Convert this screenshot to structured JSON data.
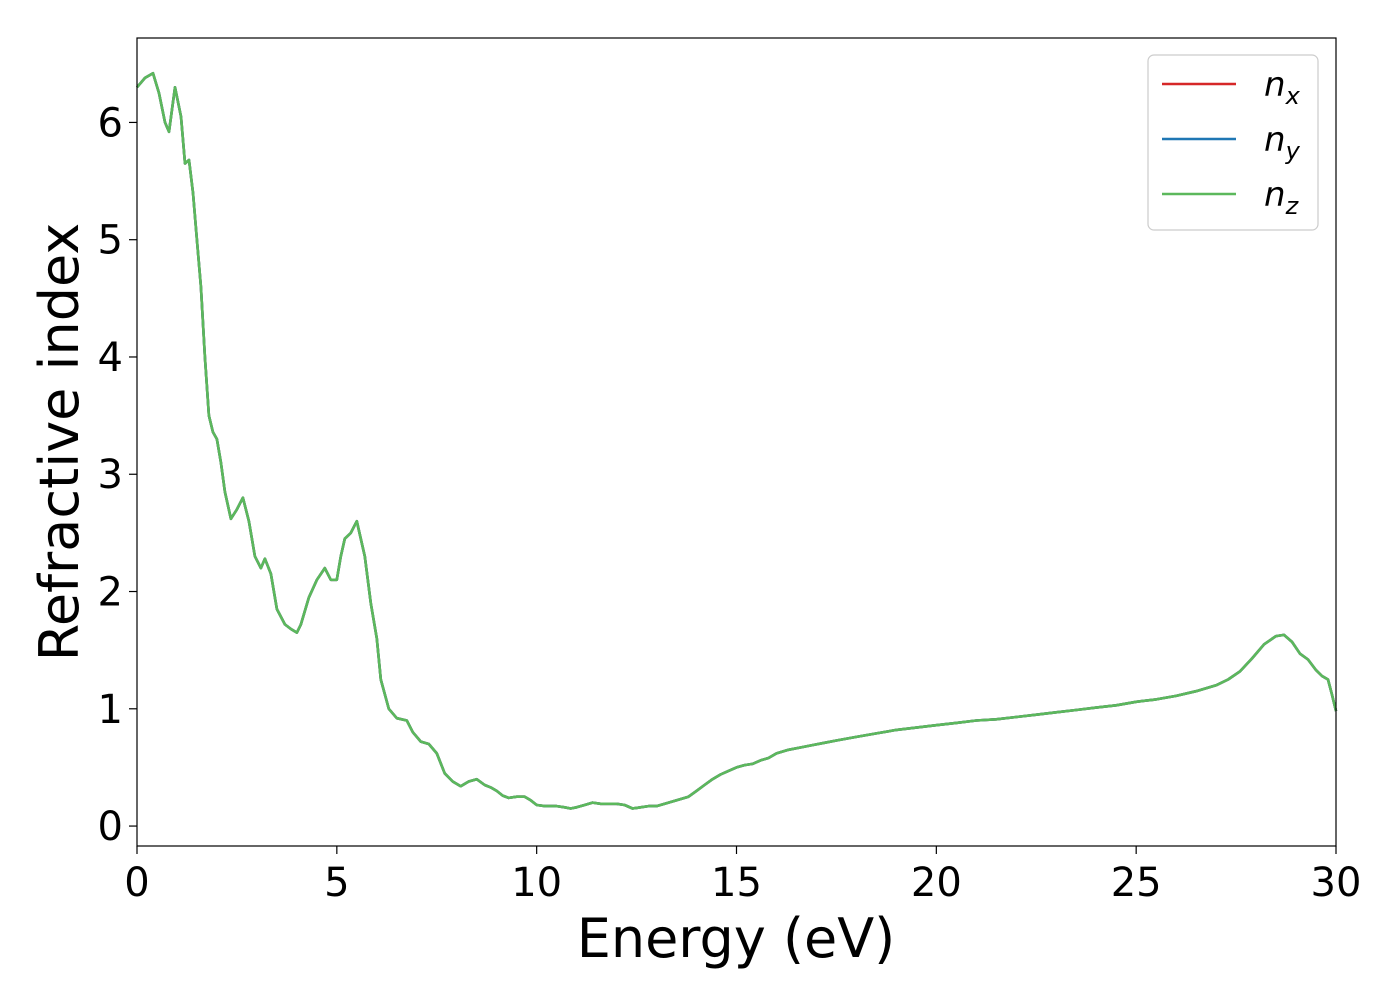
{
  "chart_data": {
    "type": "line",
    "title": "",
    "xlabel": "Energy (eV)",
    "ylabel": "Refractive index",
    "xlim": [
      0,
      30
    ],
    "ylim": [
      -0.17,
      6.72
    ],
    "xticks": [
      0,
      5,
      10,
      15,
      20,
      25,
      30
    ],
    "yticks": [
      0,
      1,
      2,
      3,
      4,
      5,
      6
    ],
    "grid": false,
    "legend_position": "top-right",
    "series": [
      {
        "name": "n",
        "subscript": "x",
        "color": "#d62728",
        "x": [
          0,
          0.2,
          0.4,
          0.55,
          0.7,
          0.8,
          0.95,
          1.1,
          1.2,
          1.3,
          1.4,
          1.5,
          1.6,
          1.7,
          1.8,
          1.9,
          2.0,
          2.1,
          2.2,
          2.35,
          2.5,
          2.65,
          2.8,
          2.95,
          3.1,
          3.2,
          3.35,
          3.5,
          3.7,
          3.85,
          4.0,
          4.1,
          4.3,
          4.5,
          4.7,
          4.85,
          5.0,
          5.1,
          5.2,
          5.35,
          5.5,
          5.7,
          5.85,
          6.0,
          6.1,
          6.3,
          6.5,
          6.75,
          6.9,
          7.1,
          7.3,
          7.5,
          7.7,
          7.9,
          8.1,
          8.3,
          8.5,
          8.7,
          8.85,
          9.0,
          9.15,
          9.3,
          9.5,
          9.7,
          9.85,
          10.0,
          10.2,
          10.5,
          10.7,
          10.85,
          11.0,
          11.2,
          11.4,
          11.6,
          11.8,
          12.0,
          12.2,
          12.4,
          12.6,
          12.8,
          13.0,
          13.3,
          13.6,
          13.8,
          14.0,
          14.2,
          14.4,
          14.6,
          14.8,
          15.0,
          15.2,
          15.4,
          15.6,
          15.8,
          16.0,
          16.3,
          16.6,
          16.9,
          17.2,
          17.5,
          18.0,
          18.5,
          19.0,
          19.5,
          20.0,
          20.5,
          21.0,
          21.5,
          22.0,
          22.5,
          23.0,
          23.5,
          24.0,
          24.5,
          25.0,
          25.5,
          26.0,
          26.5,
          27.0,
          27.3,
          27.6,
          27.9,
          28.2,
          28.5,
          28.7,
          28.9,
          29.1,
          29.3,
          29.5,
          29.65,
          29.8,
          29.9,
          30.0
        ],
        "y": [
          6.3,
          6.38,
          6.42,
          6.25,
          6.0,
          5.92,
          6.3,
          6.05,
          5.65,
          5.68,
          5.4,
          5.0,
          4.6,
          4.0,
          3.5,
          3.36,
          3.3,
          3.1,
          2.85,
          2.62,
          2.7,
          2.8,
          2.6,
          2.3,
          2.2,
          2.28,
          2.15,
          1.85,
          1.72,
          1.68,
          1.65,
          1.72,
          1.95,
          2.1,
          2.2,
          2.1,
          2.1,
          2.3,
          2.45,
          2.5,
          2.6,
          2.3,
          1.9,
          1.6,
          1.25,
          1.0,
          0.92,
          0.9,
          0.8,
          0.72,
          0.7,
          0.62,
          0.45,
          0.38,
          0.34,
          0.38,
          0.4,
          0.35,
          0.33,
          0.3,
          0.26,
          0.24,
          0.25,
          0.25,
          0.22,
          0.18,
          0.17,
          0.17,
          0.16,
          0.15,
          0.16,
          0.18,
          0.2,
          0.19,
          0.19,
          0.19,
          0.18,
          0.15,
          0.16,
          0.17,
          0.17,
          0.2,
          0.23,
          0.25,
          0.3,
          0.35,
          0.4,
          0.44,
          0.47,
          0.5,
          0.52,
          0.53,
          0.56,
          0.58,
          0.62,
          0.65,
          0.67,
          0.69,
          0.71,
          0.73,
          0.76,
          0.79,
          0.82,
          0.84,
          0.86,
          0.88,
          0.9,
          0.91,
          0.93,
          0.95,
          0.97,
          0.99,
          1.01,
          1.03,
          1.06,
          1.08,
          1.11,
          1.15,
          1.2,
          1.25,
          1.32,
          1.43,
          1.55,
          1.62,
          1.63,
          1.57,
          1.47,
          1.42,
          1.33,
          1.28,
          1.25,
          1.12,
          0.98
        ]
      },
      {
        "name": "n",
        "subscript": "y",
        "color": "#1f77b4",
        "x": [
          0,
          0.2,
          0.4,
          0.55,
          0.7,
          0.8,
          0.95,
          1.1,
          1.2,
          1.3,
          1.4,
          1.5,
          1.6,
          1.7,
          1.8,
          1.9,
          2.0,
          2.1,
          2.2,
          2.35,
          2.5,
          2.65,
          2.8,
          2.95,
          3.1,
          3.2,
          3.35,
          3.5,
          3.7,
          3.85,
          4.0,
          4.1,
          4.3,
          4.5,
          4.7,
          4.85,
          5.0,
          5.1,
          5.2,
          5.35,
          5.5,
          5.7,
          5.85,
          6.0,
          6.1,
          6.3,
          6.5,
          6.75,
          6.9,
          7.1,
          7.3,
          7.5,
          7.7,
          7.9,
          8.1,
          8.3,
          8.5,
          8.7,
          8.85,
          9.0,
          9.15,
          9.3,
          9.5,
          9.7,
          9.85,
          10.0,
          10.2,
          10.5,
          10.7,
          10.85,
          11.0,
          11.2,
          11.4,
          11.6,
          11.8,
          12.0,
          12.2,
          12.4,
          12.6,
          12.8,
          13.0,
          13.3,
          13.6,
          13.8,
          14.0,
          14.2,
          14.4,
          14.6,
          14.8,
          15.0,
          15.2,
          15.4,
          15.6,
          15.8,
          16.0,
          16.3,
          16.6,
          16.9,
          17.2,
          17.5,
          18.0,
          18.5,
          19.0,
          19.5,
          20.0,
          20.5,
          21.0,
          21.5,
          22.0,
          22.5,
          23.0,
          23.5,
          24.0,
          24.5,
          25.0,
          25.5,
          26.0,
          26.5,
          27.0,
          27.3,
          27.6,
          27.9,
          28.2,
          28.5,
          28.7,
          28.9,
          29.1,
          29.3,
          29.5,
          29.65,
          29.8,
          29.9,
          30.0
        ],
        "y": [
          6.3,
          6.38,
          6.42,
          6.25,
          6.0,
          5.92,
          6.3,
          6.05,
          5.65,
          5.68,
          5.4,
          5.0,
          4.6,
          4.0,
          3.5,
          3.36,
          3.3,
          3.1,
          2.85,
          2.62,
          2.7,
          2.8,
          2.6,
          2.3,
          2.2,
          2.28,
          2.15,
          1.85,
          1.72,
          1.68,
          1.65,
          1.72,
          1.95,
          2.1,
          2.2,
          2.1,
          2.1,
          2.3,
          2.45,
          2.5,
          2.6,
          2.3,
          1.9,
          1.6,
          1.25,
          1.0,
          0.92,
          0.9,
          0.8,
          0.72,
          0.7,
          0.62,
          0.45,
          0.38,
          0.34,
          0.38,
          0.4,
          0.35,
          0.33,
          0.3,
          0.26,
          0.24,
          0.25,
          0.25,
          0.22,
          0.18,
          0.17,
          0.17,
          0.16,
          0.15,
          0.16,
          0.18,
          0.2,
          0.19,
          0.19,
          0.19,
          0.18,
          0.15,
          0.16,
          0.17,
          0.17,
          0.2,
          0.23,
          0.25,
          0.3,
          0.35,
          0.4,
          0.44,
          0.47,
          0.5,
          0.52,
          0.53,
          0.56,
          0.58,
          0.62,
          0.65,
          0.67,
          0.69,
          0.71,
          0.73,
          0.76,
          0.79,
          0.82,
          0.84,
          0.86,
          0.88,
          0.9,
          0.91,
          0.93,
          0.95,
          0.97,
          0.99,
          1.01,
          1.03,
          1.06,
          1.08,
          1.11,
          1.15,
          1.2,
          1.25,
          1.32,
          1.43,
          1.55,
          1.62,
          1.63,
          1.57,
          1.47,
          1.42,
          1.33,
          1.28,
          1.25,
          1.12,
          0.98
        ]
      },
      {
        "name": "n",
        "subscript": "z",
        "color": "#5cb85c",
        "x": [
          0,
          0.2,
          0.4,
          0.55,
          0.7,
          0.8,
          0.95,
          1.1,
          1.2,
          1.3,
          1.4,
          1.5,
          1.6,
          1.7,
          1.8,
          1.9,
          2.0,
          2.1,
          2.2,
          2.35,
          2.5,
          2.65,
          2.8,
          2.95,
          3.1,
          3.2,
          3.35,
          3.5,
          3.7,
          3.85,
          4.0,
          4.1,
          4.3,
          4.5,
          4.7,
          4.85,
          5.0,
          5.1,
          5.2,
          5.35,
          5.5,
          5.7,
          5.85,
          6.0,
          6.1,
          6.3,
          6.5,
          6.75,
          6.9,
          7.1,
          7.3,
          7.5,
          7.7,
          7.9,
          8.1,
          8.3,
          8.5,
          8.7,
          8.85,
          9.0,
          9.15,
          9.3,
          9.5,
          9.7,
          9.85,
          10.0,
          10.2,
          10.5,
          10.7,
          10.85,
          11.0,
          11.2,
          11.4,
          11.6,
          11.8,
          12.0,
          12.2,
          12.4,
          12.6,
          12.8,
          13.0,
          13.3,
          13.6,
          13.8,
          14.0,
          14.2,
          14.4,
          14.6,
          14.8,
          15.0,
          15.2,
          15.4,
          15.6,
          15.8,
          16.0,
          16.3,
          16.6,
          16.9,
          17.2,
          17.5,
          18.0,
          18.5,
          19.0,
          19.5,
          20.0,
          20.5,
          21.0,
          21.5,
          22.0,
          22.5,
          23.0,
          23.5,
          24.0,
          24.5,
          25.0,
          25.5,
          26.0,
          26.5,
          27.0,
          27.3,
          27.6,
          27.9,
          28.2,
          28.5,
          28.7,
          28.9,
          29.1,
          29.3,
          29.5,
          29.65,
          29.8,
          29.9,
          30.0
        ],
        "y": [
          6.3,
          6.38,
          6.42,
          6.25,
          6.0,
          5.92,
          6.3,
          6.05,
          5.65,
          5.68,
          5.4,
          5.0,
          4.6,
          4.0,
          3.5,
          3.36,
          3.3,
          3.1,
          2.85,
          2.62,
          2.7,
          2.8,
          2.6,
          2.3,
          2.2,
          2.28,
          2.15,
          1.85,
          1.72,
          1.68,
          1.65,
          1.72,
          1.95,
          2.1,
          2.2,
          2.1,
          2.1,
          2.3,
          2.45,
          2.5,
          2.6,
          2.3,
          1.9,
          1.6,
          1.25,
          1.0,
          0.92,
          0.9,
          0.8,
          0.72,
          0.7,
          0.62,
          0.45,
          0.38,
          0.34,
          0.38,
          0.4,
          0.35,
          0.33,
          0.3,
          0.26,
          0.24,
          0.25,
          0.25,
          0.22,
          0.18,
          0.17,
          0.17,
          0.16,
          0.15,
          0.16,
          0.18,
          0.2,
          0.19,
          0.19,
          0.19,
          0.18,
          0.15,
          0.16,
          0.17,
          0.17,
          0.2,
          0.23,
          0.25,
          0.3,
          0.35,
          0.4,
          0.44,
          0.47,
          0.5,
          0.52,
          0.53,
          0.56,
          0.58,
          0.62,
          0.65,
          0.67,
          0.69,
          0.71,
          0.73,
          0.76,
          0.79,
          0.82,
          0.84,
          0.86,
          0.88,
          0.9,
          0.91,
          0.93,
          0.95,
          0.97,
          0.99,
          1.01,
          1.03,
          1.06,
          1.08,
          1.11,
          1.15,
          1.2,
          1.25,
          1.32,
          1.43,
          1.55,
          1.62,
          1.63,
          1.57,
          1.47,
          1.42,
          1.33,
          1.28,
          1.25,
          1.12,
          0.98
        ]
      }
    ]
  }
}
